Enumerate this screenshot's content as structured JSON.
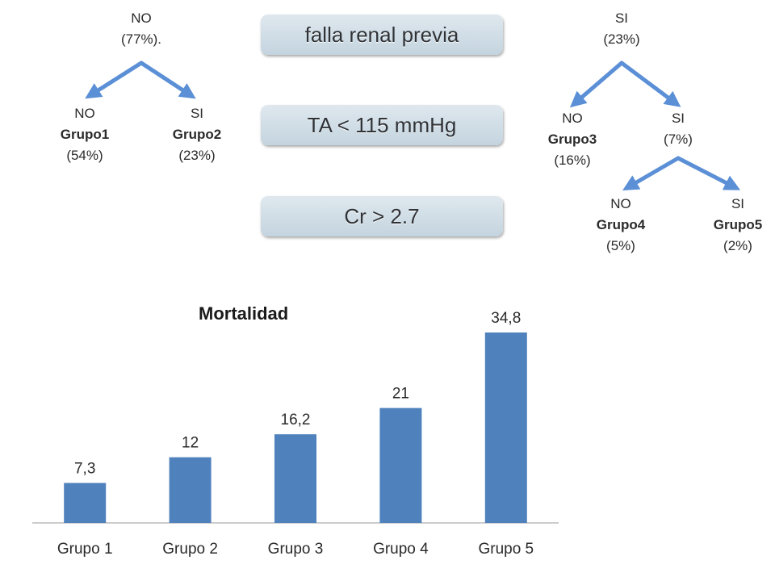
{
  "accent": "#4f81bd",
  "arrow_color": "#5b8fd6",
  "criteria": {
    "c1": "falla renal previa",
    "c2": "TA < 115 mmHg",
    "c3": "Cr > 2.7"
  },
  "left_tree": {
    "root": {
      "answer": "NO",
      "pct": "(77%)."
    },
    "no": {
      "answer": "NO",
      "group": "Grupo1",
      "pct": "(54%)"
    },
    "si": {
      "answer": "SI",
      "group": "Grupo2",
      "pct": "(23%)"
    }
  },
  "right_tree": {
    "root": {
      "answer": "SI",
      "pct": "(23%)"
    },
    "no": {
      "answer": "NO",
      "group": "Grupo3",
      "pct": "(16%)"
    },
    "si": {
      "answer": "SI",
      "pct": "(7%)"
    },
    "si_no": {
      "answer": "NO",
      "group": "Grupo4",
      "pct": "(5%)"
    },
    "si_si": {
      "answer": "SI",
      "group": "Grupo5",
      "pct": "(2%)"
    }
  },
  "chart_data": {
    "type": "bar",
    "title": "Mortalidad",
    "categories": [
      "Grupo 1",
      "Grupo 2",
      "Grupo 3",
      "Grupo 4",
      "Grupo 5"
    ],
    "values": [
      7.3,
      12,
      16.2,
      21,
      34.8
    ],
    "value_labels": [
      "7,3",
      "12",
      "16,2",
      "21",
      "34,8"
    ],
    "ylim": [
      0,
      40
    ],
    "grid": false,
    "legend": "none",
    "bar_color": "#4f81bd"
  }
}
